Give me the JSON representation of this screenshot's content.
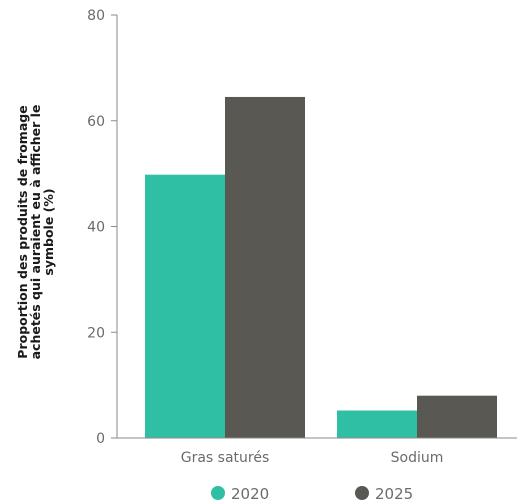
{
  "chart_data": {
    "type": "bar",
    "categories": [
      "Gras saturés",
      "Sodium"
    ],
    "series": [
      {
        "name": "2020",
        "color": "#2ebfa5",
        "values": [
          49.8,
          5.2
        ]
      },
      {
        "name": "2025",
        "color": "#5a5853",
        "values": [
          64.5,
          8.0
        ]
      }
    ],
    "ylabel": [
      "Proportion des produits de fromage",
      "achetés qui auraient eu à afficher le",
      "symbole (%)"
    ],
    "xlabel": "",
    "ylim": [
      0,
      80
    ],
    "yticks": [
      0,
      20,
      40,
      60,
      80
    ],
    "grid": false,
    "legend_position": "bottom"
  }
}
